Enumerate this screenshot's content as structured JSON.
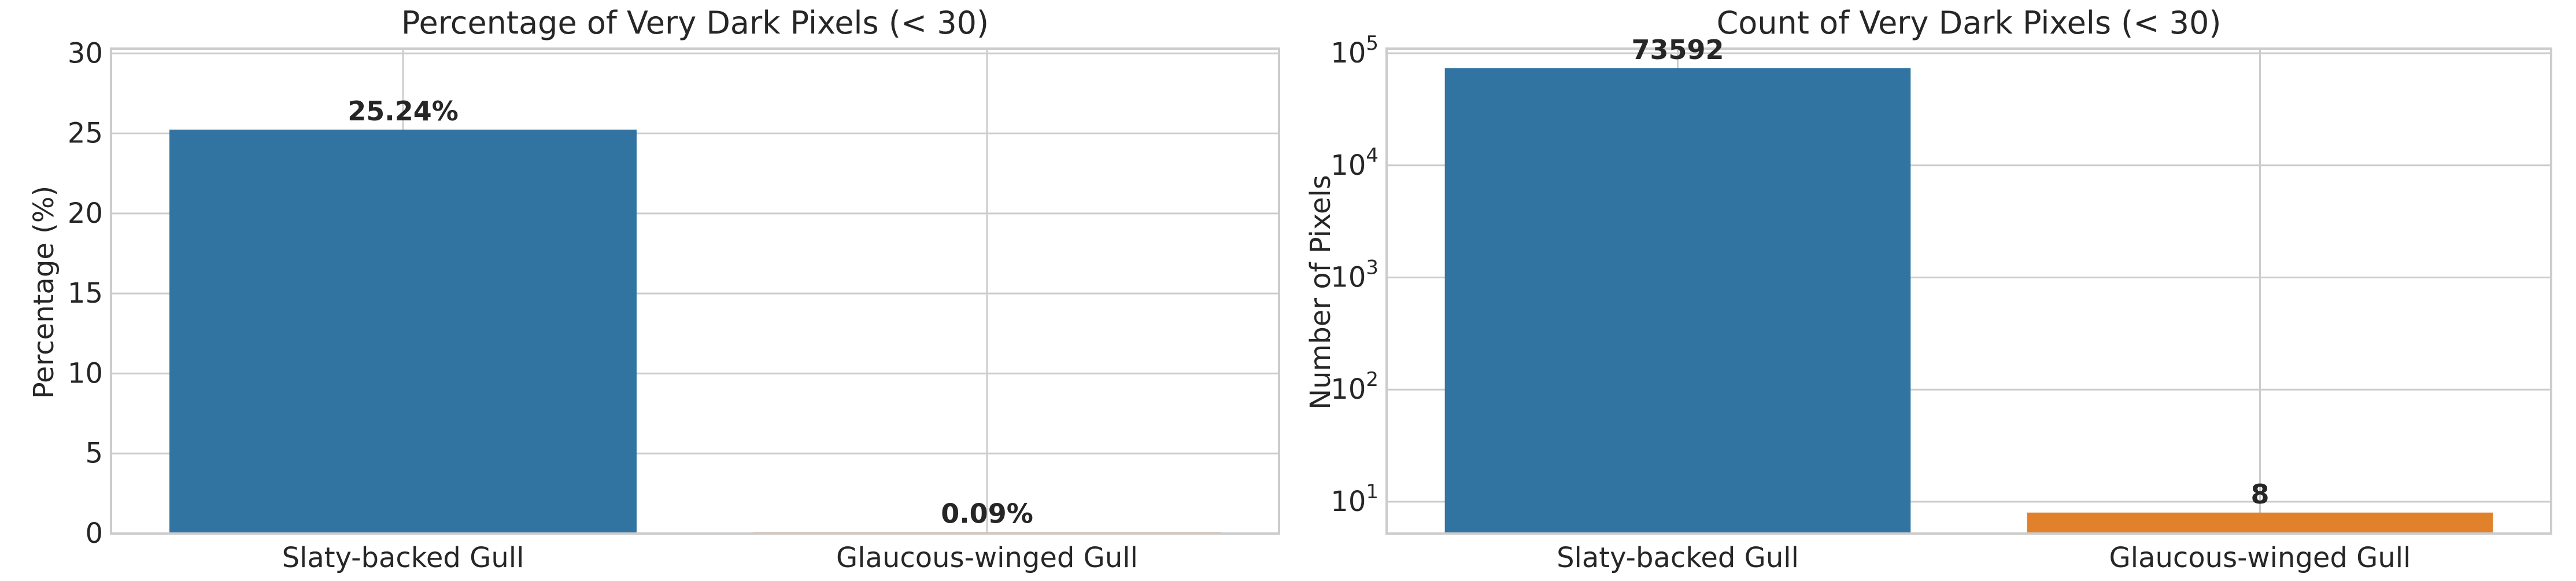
{
  "chart_data": [
    {
      "type": "bar",
      "title": "Percentage of Very Dark Pixels (< 30)",
      "xlabel": "",
      "ylabel": "Percentage (%)",
      "categories": [
        "Slaty-backed Gull",
        "Glaucous-winged Gull"
      ],
      "values": [
        25.24,
        0.09
      ],
      "value_labels": [
        "25.24%",
        "0.09%"
      ],
      "colors": [
        "#3274a1",
        "#e1812c"
      ],
      "ylim": [
        0,
        30.3
      ],
      "yticks": [
        0,
        5,
        10,
        15,
        20,
        25,
        30
      ],
      "ytick_labels": [
        "0",
        "5",
        "10",
        "15",
        "20",
        "25",
        "30"
      ],
      "yscale": "linear",
      "grid": true
    },
    {
      "type": "bar",
      "title": "Count of Very Dark Pixels (< 30)",
      "xlabel": "",
      "ylabel": "Number of Pixels",
      "categories": [
        "Slaty-backed Gull",
        "Glaucous-winged Gull"
      ],
      "values": [
        73592,
        8
      ],
      "value_labels": [
        "73592",
        "8"
      ],
      "colors": [
        "#3274a1",
        "#e1812c"
      ],
      "ylim": [
        5.2,
        110000
      ],
      "yticks": [
        10,
        100,
        1000,
        10000,
        100000
      ],
      "ytick_labels": [
        {
          "base": "10",
          "exp": "1"
        },
        {
          "base": "10",
          "exp": "2"
        },
        {
          "base": "10",
          "exp": "3"
        },
        {
          "base": "10",
          "exp": "4"
        },
        {
          "base": "10",
          "exp": "5"
        }
      ],
      "yscale": "log",
      "grid": true
    }
  ]
}
